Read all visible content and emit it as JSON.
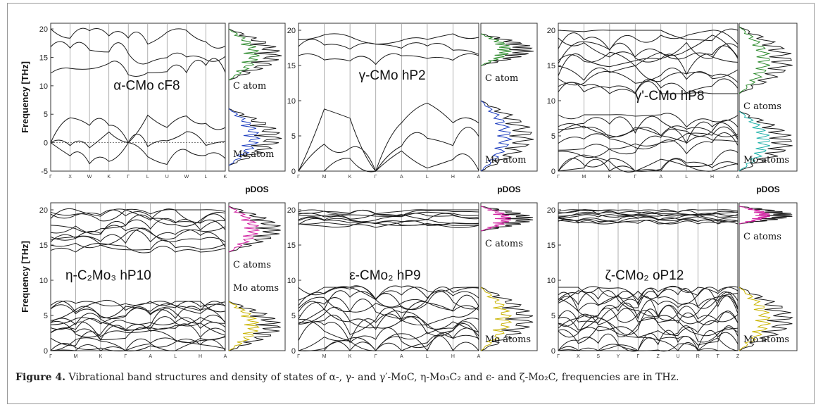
{
  "caption": {
    "label": "Figure 4.",
    "text": "Vibrational band structures and density of states of α-, γ- and γ′-MoC, η-Mo₃C₂ and ϵ- and ζ-Mo₂C, frequencies are in THz."
  },
  "y_axis_label": "Frequency  [THz]",
  "pdos_label": "pDOS",
  "colors": {
    "curve": "#1a1a1a",
    "grid": "#9a9a9a",
    "c_green": "#2e8b2e",
    "mo_blue": "#1f3fbf",
    "yellow": "#c9b400",
    "cyan": "#20b2aa",
    "magenta": "#d020a0"
  },
  "chart_data": [
    {
      "type": "line",
      "title": "α-CMo cF8",
      "ylim": [
        -5,
        21
      ],
      "yticks": [
        "20",
        "15",
        "10",
        "5",
        "0",
        "-5"
      ],
      "kpoints": [
        "Γ",
        "X",
        "W",
        "K",
        "Γ",
        "L",
        "U",
        "W",
        "L",
        "K"
      ],
      "pdos_labels": [
        "C atom",
        "Mo atom"
      ],
      "zero_line": true
    },
    {
      "type": "line",
      "title": "γ-CMo hP2",
      "ylim": [
        0,
        21
      ],
      "yticks": [
        "20",
        "15",
        "10",
        "5",
        "0"
      ],
      "kpoints": [
        "Γ",
        "M",
        "K",
        "Γ",
        "A",
        "L",
        "H",
        "A"
      ],
      "pdos_labels": [
        "C atom",
        "Mo atom"
      ]
    },
    {
      "type": "line",
      "title": "γ'-CMo hP8",
      "ylim": [
        0,
        21
      ],
      "yticks": [
        "20",
        "15",
        "10",
        "5",
        "0"
      ],
      "kpoints": [
        "Γ",
        "M",
        "K",
        "Γ",
        "A",
        "L",
        "H",
        "A"
      ],
      "pdos_labels": [
        "C atoms",
        "Mo atoms"
      ]
    },
    {
      "type": "line",
      "title": "η-C₂Mo₃ hP10",
      "ylim": [
        0,
        21
      ],
      "yticks": [
        "20",
        "15",
        "10",
        "5",
        "0"
      ],
      "kpoints": [
        "Γ",
        "M",
        "K",
        "Γ",
        "A",
        "L",
        "H",
        "A"
      ],
      "pdos_labels": [
        "C atoms",
        "Mo atoms"
      ]
    },
    {
      "type": "line",
      "title": "ε-CMo₂ hP9",
      "ylim": [
        0,
        21
      ],
      "yticks": [
        "20",
        "15",
        "10",
        "5",
        "0"
      ],
      "kpoints": [
        "Γ",
        "M",
        "K",
        "Γ",
        "A",
        "L",
        "H",
        "A"
      ],
      "pdos_labels": [
        "C atoms",
        "Mo atoms"
      ]
    },
    {
      "type": "line",
      "title": "ζ-CMo₂ oP12",
      "ylim": [
        0,
        21
      ],
      "yticks": [
        "20",
        "15",
        "10",
        "5",
        "0"
      ],
      "kpoints": [
        "Γ",
        "X",
        "S",
        "Y",
        "Γ",
        "Z",
        "U",
        "R",
        "T",
        "Z"
      ],
      "pdos_labels": [
        "C atoms",
        "Mo atoms"
      ]
    }
  ]
}
